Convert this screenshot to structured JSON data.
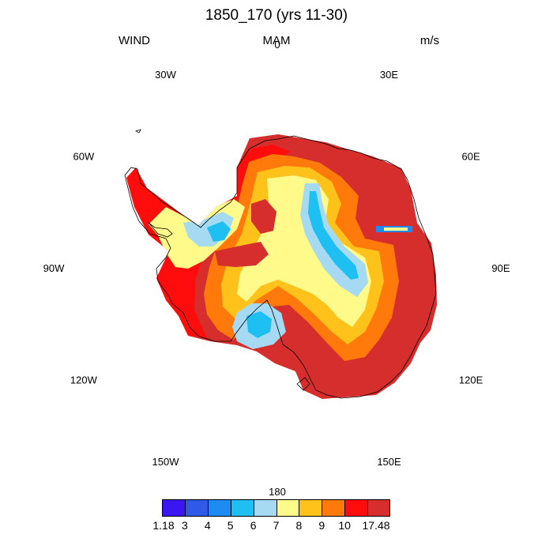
{
  "title": "1850_170 (yrs 11-30)",
  "left_label": "WIND",
  "center_label": "MAM",
  "right_label": "m/s",
  "longitude_labels": [
    "0",
    "30E",
    "60E",
    "90E",
    "120E",
    "150E",
    "180",
    "150W",
    "120W",
    "90W",
    "60W",
    "30W"
  ],
  "colorbar": {
    "colors": [
      "#3a17f0",
      "#2f5ae8",
      "#1e8bf2",
      "#1ec0f2",
      "#a6d9f2",
      "#fffa8a",
      "#ffc21a",
      "#ff7a0a",
      "#ff0d0d",
      "#d62d2d"
    ],
    "labels": [
      "1.18",
      "3",
      "4",
      "5",
      "6",
      "7",
      "8",
      "9",
      "10",
      "17.48"
    ]
  }
}
